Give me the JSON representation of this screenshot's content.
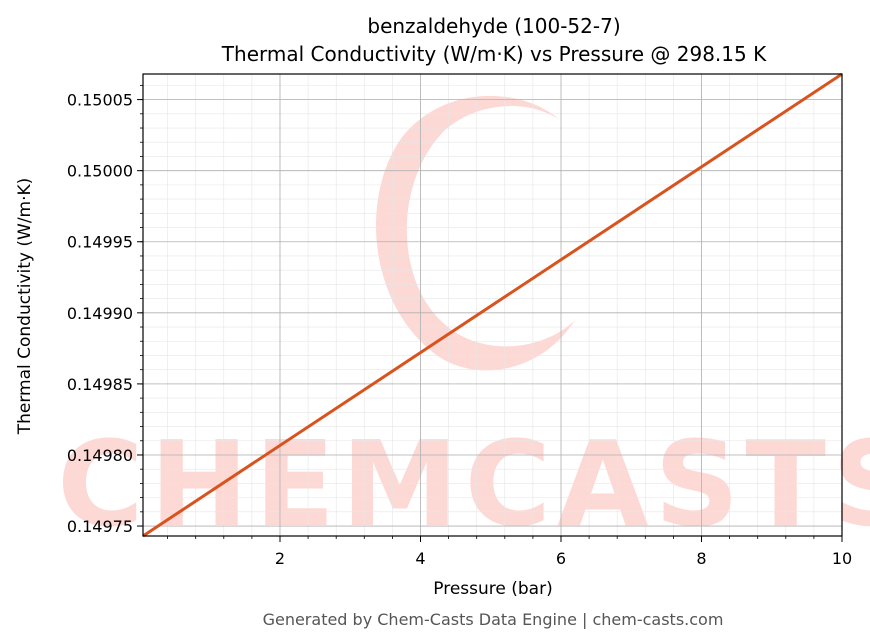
{
  "chart_data": {
    "type": "line",
    "title": "benzaldehyde (100-52-7)",
    "subtitle": "Thermal Conductivity (W/m·K) vs Pressure @ 298.15 K",
    "xlabel": "Pressure (bar)",
    "ylabel": "Thermal Conductivity (W/m·K)",
    "xlim": [
      0.05,
      10
    ],
    "ylim": [
      0.149743,
      0.150068
    ],
    "x_ticks": [
      2,
      4,
      6,
      8,
      10
    ],
    "x_tick_labels": [
      "2",
      "4",
      "6",
      "8",
      "10"
    ],
    "y_ticks": [
      0.14975,
      0.1498,
      0.14985,
      0.1499,
      0.14995,
      0.15,
      0.15005
    ],
    "y_tick_labels": [
      "0.14975",
      "0.14980",
      "0.14985",
      "0.14990",
      "0.14995",
      "0.15000",
      "0.15005"
    ],
    "grid": true,
    "series": [
      {
        "x": [
          0.05,
          10
        ],
        "y": [
          0.149743,
          0.150068
        ],
        "color": "#d9531e"
      }
    ]
  },
  "watermark": {
    "text": "CHEMCASTS",
    "color": "#fdd9d5"
  },
  "footer": "Generated by Chem-Casts Data Engine | chem-casts.com"
}
